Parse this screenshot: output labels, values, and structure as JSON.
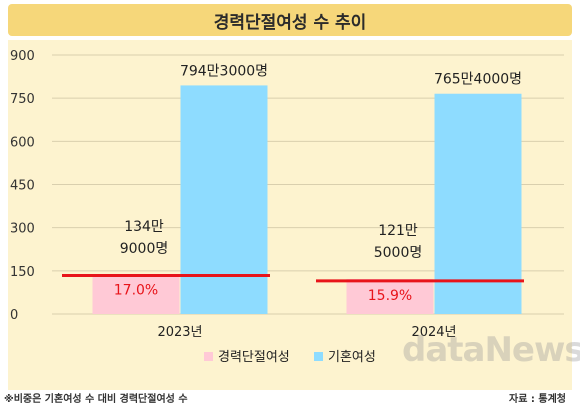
{
  "title": "경력단절여성 수 추이",
  "footnote": "※비중은 기혼여성 수 대비 경력단절여성 수",
  "source": "자료 : 통계청",
  "watermark": "dataNews",
  "colors": {
    "title_bg": "#f6d77a",
    "plot_bg": "#fdf3cf",
    "series_career_break": "#ffc9d6",
    "series_married": "#8edcff",
    "ratio_line": "#e8141a",
    "ratio_text": "#e8141a"
  },
  "chart_data": {
    "type": "bar",
    "categories": [
      "2023년",
      "2024년"
    ],
    "ylim": [
      0,
      900
    ],
    "yticks": [
      0,
      150,
      300,
      450,
      600,
      750,
      900
    ],
    "grid": true,
    "legend": "bottom",
    "series": [
      {
        "name": "경력단절여성",
        "values": [
          134.9,
          121.5
        ],
        "labels": [
          [
            "134만",
            "9000명"
          ],
          [
            "121만",
            "5000명"
          ]
        ]
      },
      {
        "name": "기혼여성",
        "values": [
          794.3,
          765.4
        ],
        "labels": [
          [
            "794만3000명"
          ],
          [
            "765만4000명"
          ]
        ]
      }
    ],
    "ratio_line_values": [
      134,
      115
    ],
    "ratio_labels": [
      "17.0%",
      "15.9%"
    ]
  }
}
